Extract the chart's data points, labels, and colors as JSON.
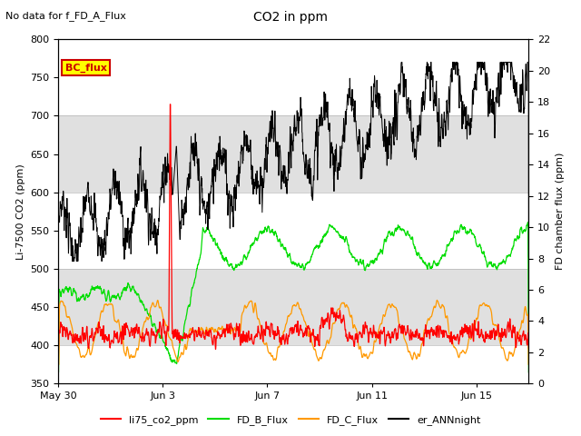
{
  "title": "CO2 in ppm",
  "subtitle": "No data for f_FD_A_Flux",
  "ylabel_left": "Li-7500 CO2 (ppm)",
  "ylabel_right": "FD chamber flux (ppm)",
  "ylim_left": [
    350,
    800
  ],
  "ylim_right": [
    0,
    22
  ],
  "yticks_left": [
    350,
    400,
    450,
    500,
    550,
    600,
    650,
    700,
    750,
    800
  ],
  "yticks_right": [
    0,
    2,
    4,
    6,
    8,
    10,
    12,
    14,
    16,
    18,
    20,
    22
  ],
  "xtick_labels": [
    "May 30",
    "Jun 3",
    "Jun 7",
    "Jun 11",
    "Jun 15"
  ],
  "xtick_positions": [
    0,
    4,
    8,
    12,
    16
  ],
  "xlim": [
    0,
    18
  ],
  "legend_box_label": "BC_flux",
  "legend_box_color": "#ffff00",
  "legend_box_border": "#cc0000",
  "colors": {
    "li75_co2_ppm": "#ff0000",
    "FD_B_Flux": "#00dd00",
    "FD_C_Flux": "#ff9900",
    "er_ANNnight": "#000000"
  },
  "gray_band_ranges": [
    [
      400,
      500
    ],
    [
      600,
      700
    ]
  ],
  "gray_band_color": "#e0e0e0"
}
